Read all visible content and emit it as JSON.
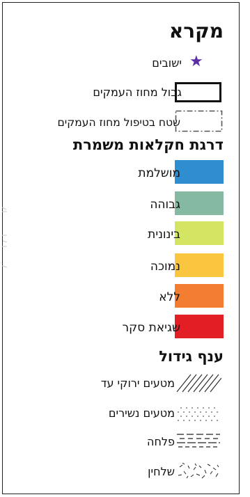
{
  "legend": {
    "title": "מקרא",
    "items": [
      {
        "label": "ישובים"
      },
      {
        "label": "גבול מחוז העמקים"
      },
      {
        "label": "שטח בטיפול מחוז העמקים"
      }
    ]
  },
  "soil": {
    "heading": "דרגת חקלאות משמרת",
    "classes": [
      {
        "label": "מושלמת",
        "color": "#2f8ed0"
      },
      {
        "label": "גבוהה",
        "color": "#86b9a2"
      },
      {
        "label": "בינונית",
        "color": "#d4e463"
      },
      {
        "label": "נמוכה",
        "color": "#fac63f"
      },
      {
        "label": "ללא",
        "color": "#f37d31"
      },
      {
        "label": "שגיאת סקר",
        "color": "#e21f25"
      }
    ]
  },
  "crop": {
    "heading": "ענף גידול",
    "items": [
      {
        "label": "מטעים ירוקי עד",
        "pattern": "diagonal-hatch"
      },
      {
        "label": "מטעים נשירים",
        "pattern": "dots"
      },
      {
        "label": "פלחה",
        "pattern": "dashed-lines"
      },
      {
        "label": "שלחין",
        "pattern": "scattered-marks"
      }
    ]
  },
  "colors": {
    "settlement_star": "#5b2ea6",
    "border": "#111111"
  }
}
